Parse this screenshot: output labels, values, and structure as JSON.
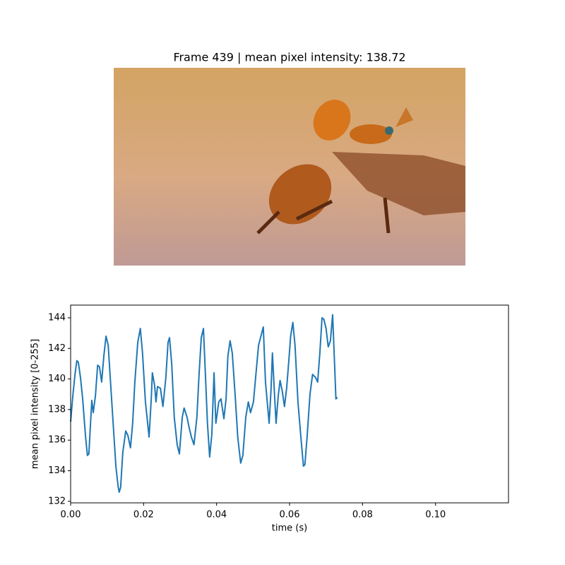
{
  "chart_data": {
    "type": "line",
    "title": "Frame 439 | mean pixel intensity: 138.72",
    "x_label": "time (s)",
    "y_label": "mean pixel intensity [0-255]",
    "color": "#1f77b4",
    "x": [
      0,
      0.0006,
      0.0012,
      0.0017,
      0.0021,
      0.0027,
      0.0033,
      0.0041,
      0.0046,
      0.005,
      0.0058,
      0.0062,
      0.0068,
      0.0074,
      0.0079,
      0.0085,
      0.0091,
      0.0097,
      0.0103,
      0.0108,
      0.0116,
      0.0124,
      0.013,
      0.0133,
      0.0137,
      0.0143,
      0.0151,
      0.0157,
      0.0164,
      0.017,
      0.0176,
      0.0184,
      0.0191,
      0.0197,
      0.0205,
      0.0215,
      0.0221,
      0.0224,
      0.023,
      0.0234,
      0.0238,
      0.0246,
      0.0253,
      0.0261,
      0.0267,
      0.0271,
      0.0277,
      0.0284,
      0.0292,
      0.0298,
      0.0306,
      0.0311,
      0.0319,
      0.0325,
      0.0331,
      0.0338,
      0.0346,
      0.0352,
      0.0358,
      0.0364,
      0.0369,
      0.0375,
      0.0381,
      0.0387,
      0.0393,
      0.0398,
      0.0406,
      0.0412,
      0.042,
      0.0426,
      0.0431,
      0.0437,
      0.0443,
      0.0451,
      0.0458,
      0.0466,
      0.0472,
      0.048,
      0.0487,
      0.0493,
      0.0501,
      0.0507,
      0.0515,
      0.0528,
      0.0534,
      0.0544,
      0.0549,
      0.0553,
      0.0557,
      0.0563,
      0.0569,
      0.0574,
      0.058,
      0.0586,
      0.0592,
      0.0598,
      0.0603,
      0.0609,
      0.0615,
      0.0623,
      0.0631,
      0.0638,
      0.0642,
      0.0648,
      0.0656,
      0.0663,
      0.0671,
      0.0677,
      0.0683,
      0.0689,
      0.0694,
      0.07,
      0.0706,
      0.0712,
      0.0718,
      0.0723,
      0.0727,
      0.0731
    ],
    "values": [
      137.2,
      138.9,
      140.3,
      141.2,
      141.1,
      140.1,
      138.7,
      136.2,
      135.0,
      135.1,
      138.6,
      137.8,
      138.9,
      140.9,
      140.8,
      139.8,
      141.5,
      142.8,
      142.2,
      140.3,
      137.3,
      134.3,
      133.0,
      132.6,
      132.9,
      135.2,
      136.6,
      136.3,
      135.5,
      137.1,
      139.8,
      142.4,
      143.3,
      141.7,
      138.5,
      136.2,
      138.7,
      140.4,
      139.6,
      138.5,
      139.5,
      139.4,
      138.2,
      140.1,
      142.4,
      142.7,
      141.0,
      137.5,
      135.7,
      135.1,
      137.5,
      138.1,
      137.5,
      136.8,
      136.2,
      135.7,
      137.5,
      140.3,
      142.7,
      143.3,
      140.5,
      137.1,
      134.9,
      136.4,
      140.4,
      137.1,
      138.5,
      138.7,
      137.4,
      138.7,
      141.5,
      142.5,
      141.7,
      138.9,
      136.2,
      134.5,
      135.0,
      137.5,
      138.5,
      137.8,
      138.5,
      140.1,
      142.2,
      143.4,
      139.8,
      137.1,
      139.2,
      141.7,
      139.8,
      137.1,
      138.9,
      139.9,
      139.2,
      138.2,
      139.4,
      141.2,
      142.8,
      143.7,
      142.2,
      138.5,
      136.2,
      134.3,
      134.4,
      136.2,
      139.0,
      140.3,
      140.1,
      139.8,
      141.7,
      144.0,
      143.9,
      143.3,
      142.1,
      142.5,
      144.2,
      141.2,
      138.7,
      138.8
    ],
    "xlim": [
      0,
      0.12
    ],
    "ylim": [
      131.9,
      144.83
    ],
    "xticks": [
      {
        "value": 0,
        "label": "0.00"
      },
      0.02,
      0.04,
      0.06,
      0.08,
      {
        "value": 0.1,
        "label": "0.10"
      }
    ],
    "yticks": [
      132,
      134,
      136,
      138,
      140,
      142,
      144
    ]
  }
}
